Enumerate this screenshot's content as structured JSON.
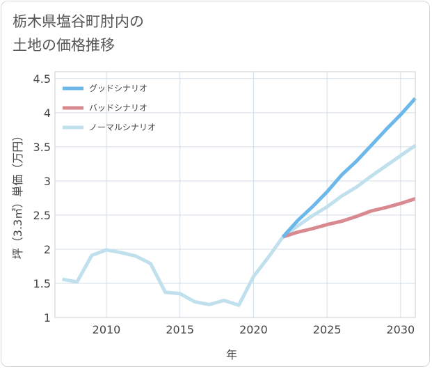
{
  "title": {
    "line1": "栃木県塩谷町肘内の",
    "line2": "土地の価格推移"
  },
  "chart_data": {
    "type": "line",
    "xlabel": "年",
    "ylabel": "坪（3.3㎡）単価（万円）",
    "xlim": [
      2006.5,
      2031
    ],
    "ylim": [
      1,
      4.6
    ],
    "x_ticks": [
      2010,
      2015,
      2020,
      2025,
      2030
    ],
    "y_ticks": [
      1,
      1.5,
      2,
      2.5,
      3,
      3.5,
      4,
      4.5
    ],
    "x_tick_labels": [
      "2010",
      "2015",
      "2020",
      "2025",
      "2030"
    ],
    "y_tick_labels": [
      "1",
      "1.5",
      "2",
      "2.5",
      "3",
      "3.5",
      "4",
      "4.5"
    ],
    "grid": true,
    "legend_position": "top-left",
    "series": [
      {
        "name": "グッドシナリオ",
        "color": "#6cb8ea",
        "x": [
          2022,
          2023,
          2024,
          2025,
          2026,
          2027,
          2028,
          2029,
          2030,
          2031
        ],
        "values": [
          2.18,
          2.42,
          2.62,
          2.84,
          3.09,
          3.29,
          3.52,
          3.75,
          3.97,
          4.21
        ]
      },
      {
        "name": "バッドシナリオ",
        "color": "#d98a90",
        "x": [
          2022,
          2023,
          2024,
          2025,
          2026,
          2027,
          2028,
          2029,
          2030,
          2031
        ],
        "values": [
          2.18,
          2.25,
          2.3,
          2.36,
          2.41,
          2.48,
          2.56,
          2.61,
          2.67,
          2.74
        ]
      },
      {
        "name": "ノーマルシナリオ",
        "color": "#bfe0ec",
        "x": [
          2007,
          2008,
          2009,
          2010,
          2011,
          2012,
          2013,
          2014,
          2015,
          2016,
          2017,
          2018,
          2019,
          2020,
          2021,
          2022,
          2023,
          2024,
          2025,
          2026,
          2027,
          2028,
          2029,
          2030,
          2031
        ],
        "values": [
          1.56,
          1.52,
          1.91,
          1.99,
          1.95,
          1.9,
          1.79,
          1.37,
          1.35,
          1.23,
          1.19,
          1.25,
          1.18,
          1.6,
          1.88,
          2.18,
          2.34,
          2.49,
          2.62,
          2.78,
          2.91,
          3.07,
          3.22,
          3.37,
          3.52
        ]
      }
    ]
  }
}
